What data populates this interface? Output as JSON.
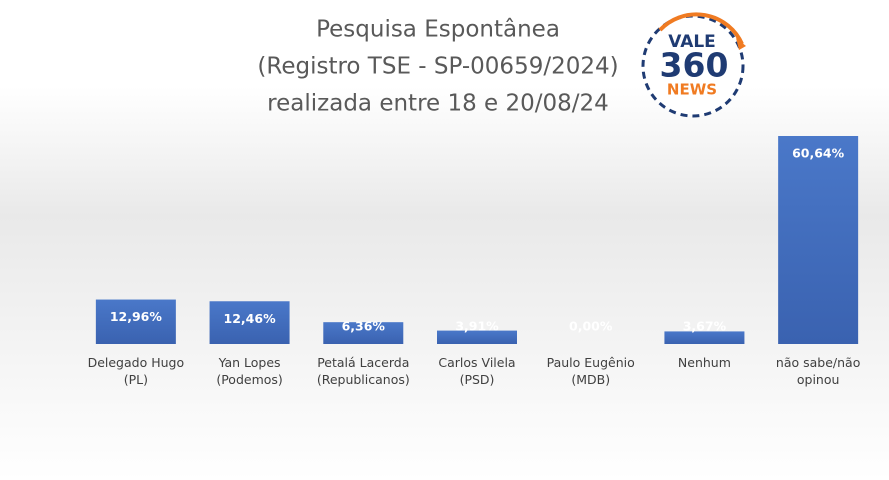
{
  "chart_data": {
    "type": "bar",
    "title": [
      "Pesquisa Espontânea",
      "(Registro TSE - SP-00659/2024)",
      "realizada entre 18 e 20/08/24"
    ],
    "categories": [
      "Delegado Hugo (PL)",
      "Yan Lopes (Podemos)",
      "Petalá Lacerda (Republicanos)",
      "Carlos Vilela (PSD)",
      "Paulo Eugênio (MDB)",
      "Nenhum",
      "não sabe/não opinou"
    ],
    "values": [
      12.96,
      12.46,
      6.36,
      3.91,
      0.0,
      3.67,
      60.64
    ],
    "value_labels": [
      "12,96%",
      "12,46%",
      "6,36%",
      "3,91%",
      "0,00%",
      "3,67%",
      "60,64%"
    ],
    "color": "#4472c4"
  },
  "logo": {
    "top": "VALE",
    "middle": "360",
    "bottom": "NEWS"
  }
}
